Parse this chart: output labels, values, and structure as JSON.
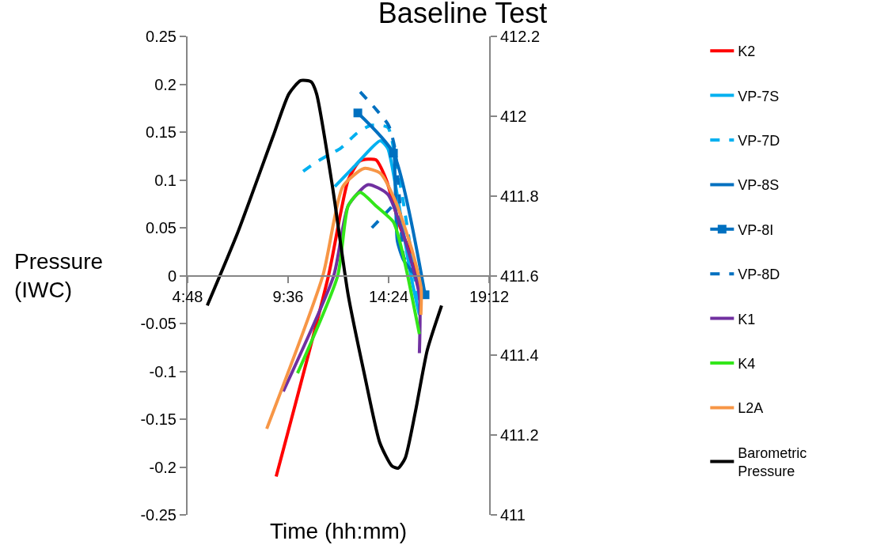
{
  "chart_data": {
    "type": "line",
    "title": "Baseline Test",
    "xlabel": "Time (hh:mm)",
    "ylabel": "Pressure (IWC)",
    "xlim": [
      4.8,
      19.2
    ],
    "xticks": [
      {
        "value": 4.8,
        "label": "4:48"
      },
      {
        "value": 9.6,
        "label": "9:36"
      },
      {
        "value": 14.4,
        "label": "14:24"
      },
      {
        "value": 19.2,
        "label": "19:12"
      }
    ],
    "ylim": [
      -0.25,
      0.25
    ],
    "yticks": [
      -0.25,
      -0.2,
      -0.15,
      -0.1,
      -0.05,
      0,
      0.05,
      0.1,
      0.15,
      0.2,
      0.25
    ],
    "y2lim": [
      411,
      412.2
    ],
    "y2ticks": [
      411,
      411.2,
      411.4,
      411.6,
      411.8,
      412,
      412.2
    ],
    "grid": false,
    "legend": "right",
    "marker": "none",
    "line_style": "solid",
    "series": [
      {
        "name": "K2",
        "color": "#ff0000",
        "x": [
          9.03,
          11.53,
          12.47,
          13.04,
          13.79,
          14.29,
          14.93,
          15.5,
          15.95
        ],
        "values": [
          -0.21,
          0,
          0.1,
          0.12,
          0.121,
          0.1,
          0.052,
          0.02,
          -0.02
        ]
      },
      {
        "name": "VP-7S",
        "color": "#00b0f0",
        "x": [
          11.83,
          12.8,
          14.0,
          14.36,
          14.74,
          15.12,
          15.5,
          15.87
        ],
        "values": [
          0.093,
          0.115,
          0.141,
          0.133,
          0.093,
          0.044,
          -0.004,
          -0.041
        ]
      },
      {
        "name": "VP-7D",
        "color": "#00b0f0",
        "line_style": "dashed",
        "x": [
          10.32,
          10.9,
          11.6,
          12.1,
          12.9,
          13.55,
          14.36,
          14.7,
          15.1,
          15.5,
          15.87
        ],
        "values": [
          0.109,
          0.118,
          0.127,
          0.133,
          0.149,
          0.157,
          0.155,
          0.125,
          0.077,
          0.02,
          -0.037
        ]
      },
      {
        "name": "VP-8S",
        "color": "#0070c0",
        "x": [
          14.66,
          14.74,
          14.82,
          15.12,
          15.68,
          16.06
        ],
        "values": [
          0.137,
          0.077,
          0.036,
          0.016,
          0,
          -0.01
        ]
      },
      {
        "name": "VP-8I",
        "color": "#0070c0",
        "marker": "square",
        "x": [
          12.93,
          14.63,
          16.14
        ],
        "values": [
          0.17,
          0.128,
          -0.02
        ]
      },
      {
        "name": "VP-8D",
        "color": "#0070c0",
        "line_style": "dashed",
        "x": [
          13.04,
          13.79,
          14.4,
          14.7,
          14.93,
          15.12,
          15.5,
          null,
          13.6,
          14.55
        ],
        "values": [
          0.192,
          0.174,
          0.157,
          0.133,
          0.077,
          0.02,
          0.004,
          null,
          0.05,
          0.072
        ]
      },
      {
        "name": "K1",
        "color": "#7030a0",
        "x": [
          9.37,
          11.78,
          12.47,
          13.42,
          14.36,
          15.31,
          15.87,
          15.87
        ],
        "values": [
          -0.121,
          0,
          0.073,
          0.095,
          0.085,
          0.028,
          -0.021,
          -0.081
        ]
      },
      {
        "name": "K4",
        "color": "#33e61a",
        "x": [
          10.05,
          11.97,
          12.47,
          13.04,
          13.79,
          14.63,
          14.93,
          15.31,
          15.87
        ],
        "values": [
          -0.102,
          0,
          0.073,
          0.087,
          0.073,
          0.056,
          0.036,
          0,
          -0.061
        ]
      },
      {
        "name": "L2A",
        "color": "#f79646",
        "x": [
          8.58,
          11.26,
          12.21,
          13.23,
          14.0,
          14.74,
          15.5,
          15.95,
          15.94
        ],
        "values": [
          -0.16,
          0,
          0.093,
          0.112,
          0.107,
          0.077,
          0.028,
          -0.013,
          -0.041
        ]
      },
      {
        "name": "Barometric Pressure",
        "color": "#000000",
        "axis": "y2",
        "x": [
          5.74,
          7.18,
          8.88,
          9.64,
          10.2,
          10.7,
          10.96,
          11.72,
          12.47,
          13.23,
          13.98,
          14.55,
          14.85,
          15.19,
          15.68,
          16.25,
          16.93
        ],
        "values": [
          411.525,
          411.706,
          411.949,
          412.056,
          412.089,
          412.086,
          412.056,
          411.823,
          411.551,
          411.356,
          411.181,
          411.123,
          411.117,
          411.142,
          411.259,
          411.414,
          411.525
        ]
      }
    ]
  }
}
